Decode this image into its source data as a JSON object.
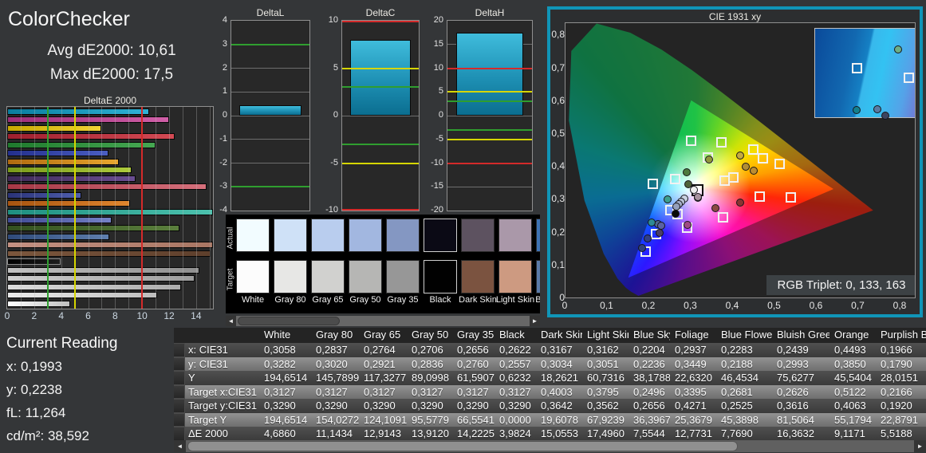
{
  "app": {
    "title": "ColorChecker",
    "avg_line": "Avg dE2000: 10,61",
    "max_line": "Max dE2000: 17,5"
  },
  "current_reading": {
    "heading": "Current Reading",
    "items": [
      {
        "label": "x:",
        "value": "0,1993"
      },
      {
        "label": "y:",
        "value": "0,2238"
      },
      {
        "label": "fL:",
        "value": "11,264"
      },
      {
        "label": "cd/m²:",
        "value": "38,592"
      }
    ]
  },
  "icons": {
    "left_arrow": "◄",
    "right_arrow": "►"
  },
  "colors": {
    "ref_green": "#2f9e2f",
    "ref_yellow": "#d6d600",
    "ref_red": "#d42a2a",
    "grid_gray": "#6e6e6e",
    "cie_border": "#1095b8"
  },
  "chart_data": {
    "deltae": {
      "type": "bar",
      "title": "DeltaE 2000",
      "x_ticks": [
        "0",
        "2",
        "4",
        "6",
        "8",
        "10",
        "12",
        "14"
      ],
      "x_max": 15.25,
      "ref_lines": [
        {
          "value": 3,
          "color": "#2f9e2f"
        },
        {
          "value": 5,
          "color": "#d6d600"
        },
        {
          "value": 10,
          "color": "#d42a2a"
        }
      ],
      "bars": [
        {
          "name": "cyan",
          "value": 10.5,
          "c1": "#0a7d9e",
          "c2": "#2fb3d6"
        },
        {
          "name": "magenta",
          "value": 12.0,
          "c1": "#9c2d78",
          "c2": "#d160a8"
        },
        {
          "name": "yellow",
          "value": 7.0,
          "c1": "#c7a800",
          "c2": "#f0d435"
        },
        {
          "name": "red",
          "value": 12.4,
          "c1": "#9e1f2e",
          "c2": "#d44a54"
        },
        {
          "name": "green",
          "value": 11.0,
          "c1": "#1f7a2d",
          "c2": "#46a852"
        },
        {
          "name": "blue",
          "value": 7.5,
          "c1": "#232f8c",
          "c2": "#4a5ec2"
        },
        {
          "name": "orange-yellow",
          "value": 8.3,
          "c1": "#b06a10",
          "c2": "#e8a62e"
        },
        {
          "name": "yellow-green",
          "value": 9.2,
          "c1": "#7a9a1a",
          "c2": "#aecb3c"
        },
        {
          "name": "purple",
          "value": 9.5,
          "c1": "#3f2a58",
          "c2": "#6b4e93"
        },
        {
          "name": "moderate-red",
          "value": 14.8,
          "c1": "#a63846",
          "c2": "#d6707c"
        },
        {
          "name": "purplish-blue",
          "value": 5.52,
          "c1": "#2a3378",
          "c2": "#505fae"
        },
        {
          "name": "orange",
          "value": 9.12,
          "c1": "#a85410",
          "c2": "#e0862e"
        },
        {
          "name": "bluish-green",
          "value": 16.36,
          "c1": "#1f8f80",
          "c2": "#4cc2ae"
        },
        {
          "name": "blue-flower",
          "value": 7.77,
          "c1": "#3f4a94",
          "c2": "#7481c6"
        },
        {
          "name": "foliage",
          "value": 12.77,
          "c1": "#33501f",
          "c2": "#5b7f3d"
        },
        {
          "name": "blue-sky",
          "value": 7.55,
          "c1": "#2f4a7a",
          "c2": "#5f7fae"
        },
        {
          "name": "light-skin",
          "value": 17.5,
          "c1": "#c49182",
          "c2": "#a87663"
        },
        {
          "name": "dark-skin",
          "value": 15.06,
          "c1": "#7c573d",
          "c2": "#5e3f2c"
        },
        {
          "name": "black",
          "value": 3.98,
          "c1": "#000000",
          "c2": "#1e1e1e",
          "border": "#8a8a8a"
        },
        {
          "name": "gray-35",
          "value": 14.22,
          "c1": "#c2c2c2",
          "c2": "#8f8f8f"
        },
        {
          "name": "gray-50",
          "value": 13.91,
          "c1": "#cecece",
          "c2": "#9c9c9c"
        },
        {
          "name": "gray-65",
          "value": 12.91,
          "c1": "#dcdcdc",
          "c2": "#ababab"
        },
        {
          "name": "gray-80",
          "value": 11.14,
          "c1": "#ebebeb",
          "c2": "#bdbdbd"
        },
        {
          "name": "white",
          "value": 4.69,
          "c1": "#ffffff",
          "c2": "#bfbfbf"
        }
      ]
    },
    "mini": [
      {
        "name": "DeltaL",
        "min": -4,
        "max": 4,
        "tick_step": 1,
        "grid": [
          -2,
          -1,
          0,
          1,
          2
        ],
        "ref_lines": [
          {
            "value": 3,
            "color": "#2f9e2f"
          },
          {
            "value": -3,
            "color": "#2f9e2f"
          }
        ],
        "bar": 0.45
      },
      {
        "name": "DeltaC",
        "min": -10,
        "max": 10,
        "tick_step": 5,
        "grid": [
          0
        ],
        "ref_lines": [
          {
            "value": 3,
            "color": "#2f9e2f"
          },
          {
            "value": -3,
            "color": "#2f9e2f"
          },
          {
            "value": 5,
            "color": "#d6d600"
          },
          {
            "value": -5,
            "color": "#d6d600"
          },
          {
            "value": 10,
            "color": "#d42a2a"
          },
          {
            "value": -10,
            "color": "#d42a2a"
          }
        ],
        "bar": 8.0
      },
      {
        "name": "DeltaH",
        "min": -20,
        "max": 20,
        "tick_step": 5,
        "grid": [
          -15,
          0,
          15
        ],
        "ref_lines": [
          {
            "value": 3,
            "color": "#2f9e2f"
          },
          {
            "value": -3,
            "color": "#2f9e2f"
          },
          {
            "value": 5,
            "color": "#d6d600"
          },
          {
            "value": -5,
            "color": "#d6d600"
          },
          {
            "value": 10,
            "color": "#d42a2a"
          },
          {
            "value": -10,
            "color": "#d42a2a"
          }
        ],
        "bar": 17.5
      }
    ],
    "cie": {
      "title": "CIE 1931 xy",
      "rgb_triplet": "RGB Triplet: 0, 133, 163",
      "x_ticks": [
        "0",
        "0,1",
        "0,2",
        "0,3",
        "0,4",
        "0,5",
        "0,6",
        "0,7",
        "0,8"
      ],
      "y_ticks": [
        "0",
        "0,1",
        "0,2",
        "0,3",
        "0,4",
        "0,5",
        "0,6",
        "0,7",
        "0,8"
      ],
      "locus": [
        [
          0.1741,
          0.005
        ],
        [
          0.1566,
          0.0177
        ],
        [
          0.144,
          0.0297
        ],
        [
          0.1241,
          0.0578
        ],
        [
          0.0913,
          0.1327
        ],
        [
          0.0454,
          0.295
        ],
        [
          0.0082,
          0.5384
        ],
        [
          0.0139,
          0.7502
        ],
        [
          0.0743,
          0.8338
        ],
        [
          0.1547,
          0.8059
        ],
        [
          0.2296,
          0.7543
        ],
        [
          0.3016,
          0.6923
        ],
        [
          0.3731,
          0.6245
        ],
        [
          0.4441,
          0.5547
        ],
        [
          0.5125,
          0.4866
        ],
        [
          0.5752,
          0.4242
        ],
        [
          0.627,
          0.3725
        ],
        [
          0.6658,
          0.334
        ],
        [
          0.6915,
          0.3083
        ],
        [
          0.7079,
          0.292
        ],
        [
          0.719,
          0.2809
        ],
        [
          0.726,
          0.274
        ],
        [
          0.7347,
          0.2653
        ]
      ],
      "triangle": [
        [
          0.64,
          0.33
        ],
        [
          0.3,
          0.6
        ],
        [
          0.15,
          0.06
        ]
      ],
      "targets": [
        {
          "name": "white-point",
          "x": 0.3127,
          "y": 0.329,
          "black_border": true
        },
        {
          "name": "dark-skin",
          "x": 0.4003,
          "y": 0.3642
        },
        {
          "name": "light-skin",
          "x": 0.3795,
          "y": 0.3562
        },
        {
          "name": "blue-sky",
          "x": 0.2496,
          "y": 0.2656
        },
        {
          "name": "foliage",
          "x": 0.3395,
          "y": 0.4271
        },
        {
          "name": "blue-flower",
          "x": 0.2681,
          "y": 0.2525
        },
        {
          "name": "bluish-green",
          "x": 0.2626,
          "y": 0.3616
        },
        {
          "name": "orange",
          "x": 0.5122,
          "y": 0.4063
        },
        {
          "name": "purplish-blue",
          "x": 0.2166,
          "y": 0.192
        },
        {
          "name": "green",
          "x": 0.3,
          "y": 0.478
        },
        {
          "name": "yellow-green",
          "x": 0.373,
          "y": 0.473
        },
        {
          "name": "yellow",
          "x": 0.449,
          "y": 0.45
        },
        {
          "name": "orange-yellow",
          "x": 0.472,
          "y": 0.423
        },
        {
          "name": "red",
          "x": 0.538,
          "y": 0.305
        },
        {
          "name": "moderate-red",
          "x": 0.464,
          "y": 0.308
        },
        {
          "name": "magenta",
          "x": 0.377,
          "y": 0.244
        },
        {
          "name": "purple",
          "x": 0.29,
          "y": 0.213
        },
        {
          "name": "cyan",
          "x": 0.209,
          "y": 0.345
        },
        {
          "name": "blue",
          "x": 0.192,
          "y": 0.14
        }
      ],
      "measurements": [
        {
          "name": "white",
          "x": 0.3058,
          "y": 0.3282,
          "color": "#ededed"
        },
        {
          "name": "gray-80",
          "x": 0.2837,
          "y": 0.302,
          "color": "#c9d2e2"
        },
        {
          "name": "gray-65",
          "x": 0.2764,
          "y": 0.2921,
          "color": "#b8c1d5"
        },
        {
          "name": "gray-50",
          "x": 0.2706,
          "y": 0.2836,
          "color": "#a6b0c9"
        },
        {
          "name": "gray-35",
          "x": 0.2656,
          "y": 0.276,
          "color": "#95a0bb"
        },
        {
          "name": "black",
          "x": 0.2622,
          "y": 0.2557,
          "color": "#0a0a0a"
        },
        {
          "name": "dark-skin",
          "x": 0.3167,
          "y": 0.3034,
          "color": "#6c5b65"
        },
        {
          "name": "light-skin",
          "x": 0.3162,
          "y": 0.3051,
          "color": "#a8929f"
        },
        {
          "name": "blue-sky",
          "x": 0.2204,
          "y": 0.2236,
          "color": "#4f678f"
        },
        {
          "name": "foliage",
          "x": 0.2937,
          "y": 0.3449,
          "color": "#4f6339"
        },
        {
          "name": "blue-flower",
          "x": 0.2283,
          "y": 0.2188,
          "color": "#5a62a2"
        },
        {
          "name": "bluish-green",
          "x": 0.2439,
          "y": 0.2993,
          "color": "#3d9f8e"
        },
        {
          "name": "orange",
          "x": 0.4493,
          "y": 0.385,
          "color": "#bd8d32"
        },
        {
          "name": "purplish-blue",
          "x": 0.1966,
          "y": 0.179,
          "color": "#323f85"
        },
        {
          "name": "green",
          "x": 0.289,
          "y": 0.381,
          "color": "#4d7a3e"
        },
        {
          "name": "yellow-green",
          "x": 0.343,
          "y": 0.421,
          "color": "#92973c"
        },
        {
          "name": "yellow",
          "x": 0.417,
          "y": 0.431,
          "color": "#c3aa42"
        },
        {
          "name": "orange-yellow",
          "x": 0.431,
          "y": 0.398,
          "color": "#b28d34"
        },
        {
          "name": "red",
          "x": 0.418,
          "y": 0.288,
          "color": "#8a3331"
        },
        {
          "name": "moderate-red",
          "x": 0.358,
          "y": 0.273,
          "color": "#8a4a42"
        },
        {
          "name": "magenta",
          "x": 0.291,
          "y": 0.221,
          "color": "#9f4a83"
        },
        {
          "name": "purple",
          "x": 0.225,
          "y": 0.196,
          "color": "#4b3e65"
        },
        {
          "name": "cyan",
          "x": 0.205,
          "y": 0.229,
          "color": "#2e8a95"
        },
        {
          "name": "blue",
          "x": 0.183,
          "y": 0.151,
          "color": "#31427d"
        }
      ],
      "inset": {
        "squares": [
          {
            "x": 0.41,
            "y": 0.45
          },
          {
            "x": 0.91,
            "y": 0.56
          }
        ],
        "circles": [
          {
            "x": 0.8,
            "y": 0.23,
            "color": "#6fae85"
          },
          {
            "x": 0.4,
            "y": 0.92,
            "color": "#13808e"
          },
          {
            "x": 0.6,
            "y": 0.91,
            "color": "#5a7ba3"
          },
          {
            "x": 0.68,
            "y": 0.98,
            "color": "#3c4460"
          }
        ]
      }
    }
  },
  "swatches": {
    "row_labels": [
      "Actual",
      "Target"
    ],
    "columns": [
      {
        "label": "White",
        "actual": "#f2fcff",
        "target": "#fcfcfc"
      },
      {
        "label": "Gray 80",
        "actual": "#cfe1f7",
        "target": "#e7e7e5"
      },
      {
        "label": "Gray 65",
        "actual": "#b9cdee",
        "target": "#d1d1cf"
      },
      {
        "label": "Gray 50",
        "actual": "#a2b7e0",
        "target": "#b6b6b4"
      },
      {
        "label": "Gray 35",
        "actual": "#8497c2",
        "target": "#979797"
      },
      {
        "label": "Black",
        "actual": "#0b0a15",
        "target": "#010101",
        "light_border": true
      },
      {
        "label": "Dark Skin",
        "actual": "#5d5260",
        "target": "#7b5340"
      },
      {
        "label": "Light Skin",
        "actual": "#aa98a9",
        "target": "#cd9a81"
      },
      {
        "label": "Blue Sky",
        "actual": "#3e73b5",
        "target": "#5b7ba9"
      }
    ]
  },
  "table": {
    "row_labels": [
      "x: CIE31",
      "y: CIE31",
      "Y",
      "Target x:CIE31",
      "Target y:CIE31",
      "Target Y",
      "ΔE 2000"
    ],
    "columns": [
      {
        "label": "White",
        "values": [
          "0,3058",
          "0,3282",
          "194,6514",
          "0,3127",
          "0,3290",
          "194,6514",
          "4,6860"
        ]
      },
      {
        "label": "Gray 80",
        "values": [
          "0,2837",
          "0,3020",
          "145,7899",
          "0,3127",
          "0,3290",
          "154,0272",
          "11,1434"
        ]
      },
      {
        "label": "Gray 65",
        "values": [
          "0,2764",
          "0,2921",
          "117,3277",
          "0,3127",
          "0,3290",
          "124,1091",
          "12,9143"
        ]
      },
      {
        "label": "Gray 50",
        "values": [
          "0,2706",
          "0,2836",
          "89,0998",
          "0,3127",
          "0,3290",
          "95,5779",
          "13,9120"
        ]
      },
      {
        "label": "Gray 35",
        "values": [
          "0,2656",
          "0,2760",
          "61,5907",
          "0,3127",
          "0,3290",
          "66,5541",
          "14,2225"
        ]
      },
      {
        "label": "Black",
        "values": [
          "0,2622",
          "0,2557",
          "0,6232",
          "0,3127",
          "0,3290",
          "0,0000",
          "3,9824"
        ]
      },
      {
        "label": "Dark Skin",
        "values": [
          "0,3167",
          "0,3034",
          "18,2621",
          "0,4003",
          "0,3642",
          "19,6078",
          "15,0553"
        ]
      },
      {
        "label": "Light Skin",
        "values": [
          "0,3162",
          "0,3051",
          "60,7316",
          "0,3795",
          "0,3562",
          "67,9239",
          "17,4960"
        ]
      },
      {
        "label": "Blue Sky",
        "values": [
          "0,2204",
          "0,2236",
          "38,1788",
          "0,2496",
          "0,2656",
          "36,3967",
          "7,5544"
        ]
      },
      {
        "label": "Foliage",
        "values": [
          "0,2937",
          "0,3449",
          "22,6320",
          "0,3395",
          "0,4271",
          "25,3679",
          "12,7731"
        ]
      },
      {
        "label": "Blue Flower",
        "values": [
          "0,2283",
          "0,2188",
          "46,4534",
          "0,2681",
          "0,2525",
          "45,3898",
          "7,7690"
        ]
      },
      {
        "label": "Bluish Green",
        "values": [
          "0,2439",
          "0,2993",
          "75,6277",
          "0,2626",
          "0,3616",
          "81,5064",
          "16,3632"
        ]
      },
      {
        "label": "Orange",
        "values": [
          "0,4493",
          "0,3850",
          "45,5404",
          "0,5122",
          "0,4063",
          "55,1794",
          "9,1171"
        ]
      },
      {
        "label": "Purplish Blue",
        "values": [
          "0,1966",
          "0,1790",
          "28,0151",
          "0,2166",
          "0,1920",
          "22,8791",
          "5,5188"
        ]
      }
    ]
  }
}
